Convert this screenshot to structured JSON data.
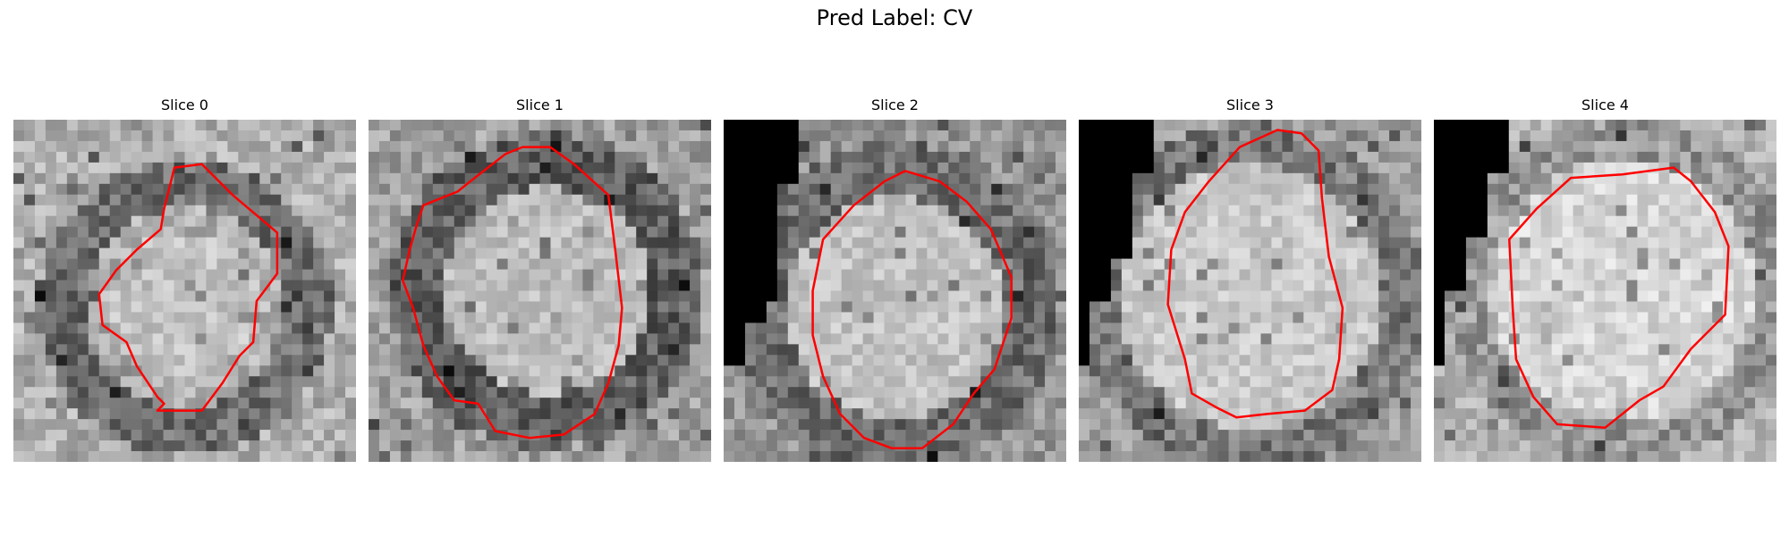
{
  "figure": {
    "title": "Pred Label: CV"
  },
  "panels": [
    {
      "title": "Slice 0"
    },
    {
      "title": "Slice 1"
    },
    {
      "title": "Slice 2"
    },
    {
      "title": "Slice 3"
    },
    {
      "title": "Slice 4"
    }
  ],
  "colors": {
    "contour": "#ff0000"
  }
}
